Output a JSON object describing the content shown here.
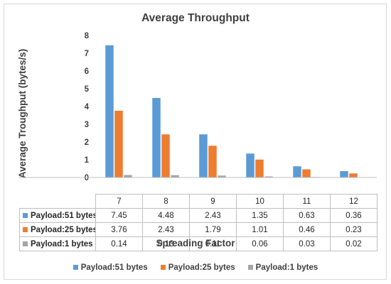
{
  "chart_data": {
    "type": "bar",
    "title": "Average Throughput",
    "xlabel": "Spreading Factor",
    "ylabel": "Average Troughput (bytes/s)",
    "ylim": [
      0,
      8
    ],
    "yticks": [
      0,
      1,
      2,
      3,
      4,
      5,
      6,
      7,
      8
    ],
    "grid": false,
    "legend_position": "bottom",
    "data_table": true,
    "categories": [
      "7",
      "8",
      "9",
      "10",
      "11",
      "12"
    ],
    "series": [
      {
        "name": "Payload:51 bytes",
        "color": "#5b9bd5",
        "values": [
          7.45,
          4.48,
          2.43,
          1.35,
          0.63,
          0.36
        ]
      },
      {
        "name": "Payload:25 bytes",
        "color": "#ed7d31",
        "values": [
          3.76,
          2.43,
          1.79,
          1.01,
          0.46,
          0.23
        ]
      },
      {
        "name": "Payload:1 bytes",
        "color": "#a5a5a5",
        "values": [
          0.14,
          0.13,
          0.11,
          0.06,
          0.03,
          0.02
        ]
      }
    ]
  }
}
